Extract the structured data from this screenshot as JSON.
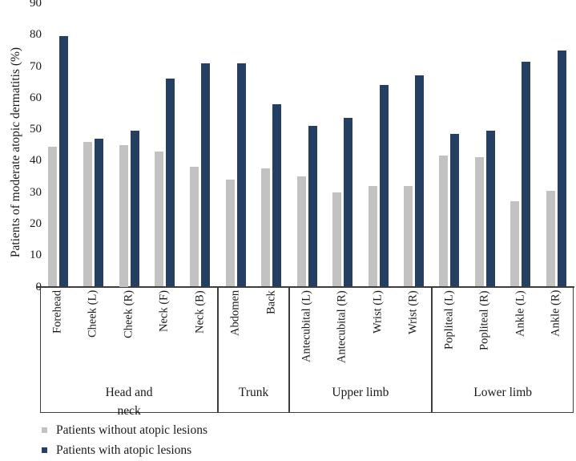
{
  "figure": {
    "kind": "journal-style grouped bar chart",
    "background": "#ffffff"
  },
  "colors": {
    "axis": "#3d3d3d",
    "text": "#1a1a1a",
    "series_without": "#c2c2c2",
    "series_with": "#243f62"
  },
  "chart_data": {
    "type": "bar",
    "title": "",
    "xlabel": "",
    "ylabel": "Patients of moderate atopic dermatitis (%)",
    "ylim": [
      0,
      90
    ],
    "ytick_step": 10,
    "yticks": [
      0,
      10,
      20,
      30,
      40,
      50,
      60,
      70,
      80,
      90
    ],
    "grid": false,
    "legend_position": "bottom-left",
    "groups": [
      {
        "label": "Head and\nneck",
        "categories": [
          "Forehead",
          "Cheek (L)",
          "Cheek (R)",
          "Neck (F)",
          "Neck (B)"
        ]
      },
      {
        "label": "Trunk",
        "categories": [
          "Abdomen",
          "Back"
        ]
      },
      {
        "label": "Upper limb",
        "categories": [
          "Antecubital (L)",
          "Antecubital (R)",
          "Wrist (L)",
          "Wrist (R)"
        ]
      },
      {
        "label": "Lower limb",
        "categories": [
          "Popliteal (L)",
          "Popliteal (R)",
          "Ankle (L)",
          "Ankle (R)"
        ]
      }
    ],
    "categories": [
      "Forehead",
      "Cheek (L)",
      "Cheek (R)",
      "Neck (F)",
      "Neck (B)",
      "Abdomen",
      "Back",
      "Antecubital (L)",
      "Antecubital (R)",
      "Wrist (L)",
      "Wrist (R)",
      "Popliteal (L)",
      "Popliteal (R)",
      "Ankle (L)",
      "Ankle (R)"
    ],
    "series": [
      {
        "name": "Patients without atopic lesions",
        "color": "#c2c2c2",
        "values": [
          44.5,
          46,
          45,
          43,
          38,
          34,
          37.5,
          35,
          30,
          32,
          32,
          41.5,
          41,
          27,
          30.5
        ]
      },
      {
        "name": "Patients with atopic lesions",
        "color": "#243f62",
        "values": [
          79.5,
          47,
          49.5,
          66,
          71,
          71,
          58,
          51,
          53.5,
          64,
          67,
          48.5,
          49.5,
          71.5,
          75
        ]
      }
    ]
  }
}
